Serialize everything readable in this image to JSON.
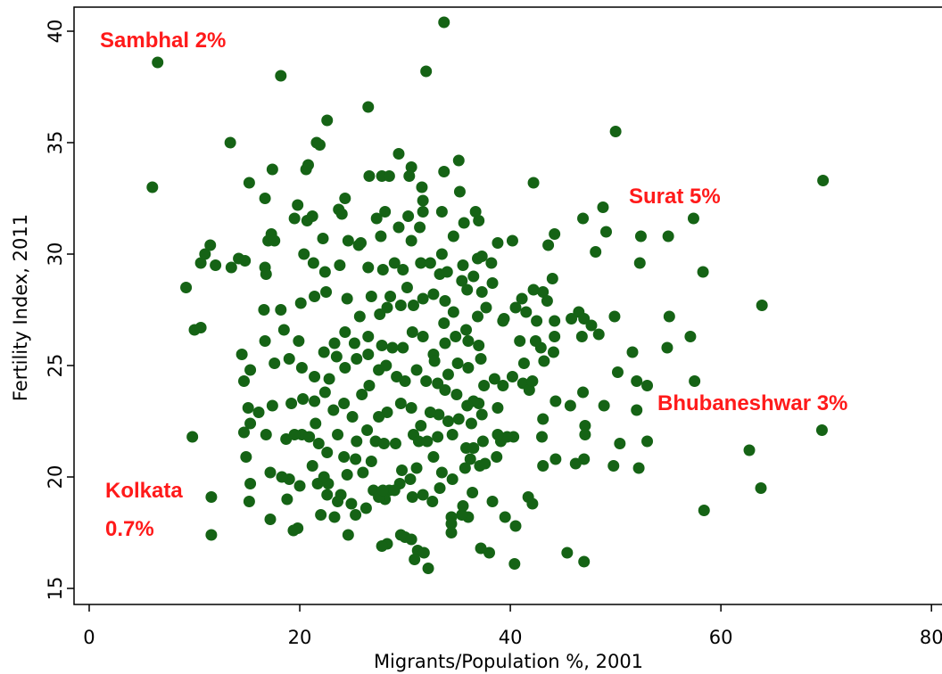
{
  "chart_data": {
    "type": "scatter",
    "xlabel": "Migrants/Population %, 2001",
    "ylabel": "Fertility Index, 2011",
    "annotations": [
      "Sambhal 2%",
      "Surat 5%",
      "Bhubaneshwar 3%",
      "Kolkata",
      "0.7%"
    ],
    "color": "#156315",
    "xlim": [
      -1.44,
      81
    ],
    "xticks": [
      0,
      20,
      40,
      60,
      80
    ],
    "ylim": [
      14.28,
      41.08
    ],
    "yticks": [
      15,
      20,
      25,
      30,
      35,
      40
    ],
    "x": [
      6.5,
      6,
      33.7,
      32,
      18.2,
      26.5,
      22.6,
      13.4,
      50,
      69.7,
      42.2,
      57.4,
      55,
      52.4,
      58.3,
      52.3,
      63.9,
      57.1,
      55.1,
      54.9,
      57.5,
      52,
      53,
      52,
      69.6,
      62.7,
      63.8,
      58.4,
      53,
      50.4,
      49.8,
      52.2,
      47,
      45.4,
      40.4,
      32.2,
      11.6,
      11.6,
      9.8,
      9.2,
      10,
      10.6,
      10.6,
      11,
      11.5,
      12,
      13.5,
      14.2,
      14.8,
      15.2,
      16.7,
      17.4,
      20.8,
      20.6,
      21.6,
      21.9,
      23.7,
      24,
      24.3,
      26.6,
      27.8,
      28.5,
      29.4,
      30.6,
      30.4,
      31.6,
      33.7,
      35.1,
      35.2,
      31.7,
      31.7,
      33.5,
      36.7,
      37,
      35.6,
      34.6,
      38.8,
      40.2,
      43.6,
      44.2,
      46.9,
      48.8,
      49.1,
      48.1,
      30.3,
      29.4,
      28.1,
      27.3,
      27.7,
      25.6,
      25.8,
      22.2,
      19.5,
      20.7,
      21.2,
      19.8,
      17.3,
      17,
      17.6,
      16.7,
      16.8,
      20.4,
      21.3,
      22.4,
      23.8,
      26.5,
      27.9,
      29.8,
      30.6,
      31.5,
      32.4,
      33.3,
      34,
      35.5,
      36.9,
      37.3,
      38.2,
      36.5,
      35.9,
      37.3,
      38.3,
      39.3,
      40.5,
      41.1,
      42.2,
      42.5,
      43.1,
      43.5,
      44,
      44.2,
      45.8,
      46.5,
      47,
      47.7,
      46.8,
      49.9,
      48.4,
      50.2,
      51.6,
      44.1,
      44.2,
      42.9,
      43.2,
      42.4,
      41.3,
      40.2,
      41.2,
      41.8,
      42.1,
      44.3,
      43.1,
      45.7,
      46.9,
      47.1,
      48.9,
      47.1,
      43,
      44.3,
      46.2,
      47,
      43.1,
      41.7,
      42.1,
      40.5,
      38,
      37.2,
      36,
      35.4,
      34.4,
      34.4,
      34.4,
      30,
      29.6,
      28.3,
      27.8,
      30.6,
      31.2,
      30.9,
      31.8,
      24.6,
      23.3,
      22,
      19.8,
      19.4,
      17.2,
      18.8,
      20,
      19,
      18.3,
      17.2,
      15.3,
      15.2,
      14.9,
      14.7,
      15.3,
      16.8,
      18.7,
      20.2,
      20.9,
      21.8,
      19.5,
      23.6,
      21.5,
      24.2,
      25.4,
      25.3,
      27.2,
      28,
      29.1,
      30.8,
      31.3,
      32.1,
      33.1,
      34.5,
      35.8,
      36.5,
      37.4,
      36.2,
      37.1,
      38.7,
      39.1,
      40.3,
      39.7,
      35.7,
      33.5,
      32.7,
      31.1,
      29.7,
      30.5,
      29.5,
      28.5,
      28.1,
      27,
      27.5,
      26.3,
      25.3,
      24.9,
      23.9,
      22.6,
      21.7,
      22.7,
      23.6,
      24.5,
      26,
      27.9,
      29,
      30.7,
      31.7,
      32.6,
      33.3,
      34.5,
      35.5,
      36.4,
      38.3,
      39.5,
      37.6,
      38.8,
      36.3,
      37.3,
      37,
      38.8,
      39.3,
      38.5,
      37.5,
      36.5,
      35.9,
      35.1,
      34.1,
      33.2,
      32.4,
      31.5,
      30.6,
      29.6,
      28.3,
      27.5,
      26.4,
      25,
      24.2,
      23.2,
      22.4,
      21.4,
      20.3,
      19.2,
      17.4,
      16.1,
      15.1,
      14.7,
      15.3,
      14.5,
      17.6,
      19,
      20.2,
      21.4,
      22.8,
      23.5,
      24.3,
      25.4,
      26.5,
      27.5,
      28.2,
      29.2,
      30,
      31.1,
      32,
      33.1,
      34.1,
      35,
      36,
      37.2,
      37,
      36,
      34.8,
      33.8,
      32.7,
      31.7,
      30.7,
      29.8,
      28.8,
      27.8,
      26.5,
      25.2,
      24.3,
      23.3,
      22.3,
      19.9,
      18.5,
      16.7,
      16.6,
      18.2,
      20.1,
      21.4,
      22.5,
      24.5,
      25.7,
      26.8,
      27.6,
      28.3,
      29.6,
      30.8,
      31.7,
      32.7,
      33.8,
      34.6,
      33.7,
      35.8,
      36.9,
      37.7,
      39.4,
      35.4,
      33.5,
      31.4,
      29,
      24.6,
      28.6,
      26.6,
      25.9,
      40.9,
      41.5,
      26.8,
      22.6,
      21.2,
      22.3,
      33.8,
      32.8,
      30.2,
      34.9
    ],
    "values": [
      38.6,
      33,
      40.4,
      38.2,
      38,
      36.6,
      36,
      35,
      35.5,
      33.3,
      33.2,
      31.6,
      30.8,
      30.8,
      29.2,
      29.6,
      27.7,
      26.3,
      27.2,
      25.8,
      24.3,
      24.3,
      24.1,
      23,
      22.1,
      21.2,
      19.5,
      18.5,
      21.6,
      21.5,
      20.5,
      20.4,
      16.2,
      16.6,
      16.1,
      15.9,
      17.4,
      19.1,
      21.8,
      28.5,
      26.6,
      26.7,
      29.6,
      30,
      30.4,
      29.5,
      29.4,
      29.8,
      29.7,
      33.2,
      32.5,
      33.8,
      34,
      33.8,
      35,
      34.9,
      32,
      31.8,
      32.5,
      33.5,
      33.5,
      33.5,
      34.5,
      33.9,
      33.5,
      33,
      33.7,
      34.2,
      32.8,
      32.4,
      31.9,
      31.9,
      31.9,
      31.5,
      31.4,
      30.8,
      30.5,
      30.6,
      30.4,
      30.9,
      31.6,
      32.1,
      31,
      30.1,
      31.7,
      31.2,
      31.9,
      31.6,
      30.8,
      30.4,
      30.5,
      30.7,
      31.6,
      31.5,
      31.7,
      32.2,
      30.9,
      30.6,
      30.6,
      29.4,
      29.1,
      30,
      29.6,
      29.2,
      29.5,
      29.4,
      29.3,
      29.3,
      30.6,
      29.6,
      29.6,
      29.1,
      29.2,
      29.5,
      29.8,
      29.9,
      29.6,
      29,
      28.4,
      28.3,
      28.7,
      27,
      27.6,
      28,
      28.4,
      27,
      28.3,
      27.9,
      28.9,
      27,
      27.1,
      27.4,
      27.1,
      26.8,
      26.3,
      27.2,
      26.4,
      24.7,
      25.6,
      25.6,
      26.3,
      25.8,
      25.2,
      26.1,
      25.1,
      24.5,
      24.2,
      23.9,
      24.3,
      23.4,
      22.6,
      23.2,
      23.8,
      22.3,
      23.2,
      21.9,
      21.8,
      20.8,
      20.6,
      20.8,
      20.5,
      19.1,
      18.8,
      17.8,
      16.6,
      16.8,
      18.2,
      18.3,
      18.2,
      17.5,
      17.9,
      17.3,
      17.4,
      17,
      16.9,
      17.2,
      16.7,
      16.3,
      16.6,
      17.4,
      18.2,
      18.3,
      17.7,
      17.6,
      18.1,
      19,
      19.6,
      19.9,
      20,
      20.2,
      19.7,
      18.9,
      20.9,
      22,
      22.4,
      21.9,
      21.7,
      21.9,
      21.8,
      21.5,
      21.9,
      21.9,
      22.4,
      20.9,
      21.6,
      20.8,
      21.6,
      21.5,
      21.5,
      21.9,
      21.6,
      21.6,
      21.8,
      21.9,
      21.3,
      21.3,
      21.6,
      20.8,
      20.5,
      20.9,
      21.6,
      21.8,
      21.8,
      20.4,
      20.2,
      20.9,
      20.4,
      20.3,
      19.9,
      19.7,
      19.4,
      19,
      19.4,
      19.1,
      18.6,
      18.3,
      18.8,
      19.2,
      19.2,
      19.7,
      19.7,
      18.9,
      20.1,
      20.2,
      19.4,
      19.4,
      19.1,
      19.2,
      18.9,
      19.5,
      19.9,
      18.7,
      19.3,
      18.9,
      18.2,
      20.6,
      21.9,
      22.4,
      22.8,
      23.3,
      23.1,
      24.1,
      24.4,
      24.1,
      23.4,
      23.2,
      22.6,
      22.5,
      22.8,
      22.9,
      22.3,
      23.1,
      23.3,
      22.9,
      22.7,
      22.1,
      22.7,
      23.3,
      23,
      23.8,
      23.4,
      23.5,
      23.3,
      23.2,
      22.9,
      23.1,
      24.3,
      24.8,
      25.5,
      25.1,
      25.3,
      24.9,
      24.5,
      24.4,
      25.4,
      24.9,
      25.3,
      25.5,
      24.8,
      25,
      24.5,
      24.3,
      24.8,
      24.3,
      24.2,
      24.6,
      25.1,
      24.9,
      25.3,
      25.9,
      26.1,
      26.3,
      26,
      25.5,
      26.3,
      26.5,
      25.8,
      25.8,
      25.9,
      26.3,
      26,
      26.5,
      26,
      25.6,
      26.1,
      26.6,
      26.1,
      27.5,
      27.5,
      27.8,
      28.1,
      28.3,
      28,
      27.2,
      28.1,
      27.3,
      27.6,
      27.7,
      27.7,
      28,
      28.2,
      27.9,
      27.4,
      26.9,
      26.6,
      27.2,
      27.6,
      27.1,
      28.8,
      30,
      31.2,
      29.6,
      30.6,
      28.1,
      24.1,
      23.7,
      26.1,
      27.4,
      20.7,
      21.1,
      20.5,
      20,
      23.9,
      25.2,
      28.5,
      23.7
    ]
  }
}
